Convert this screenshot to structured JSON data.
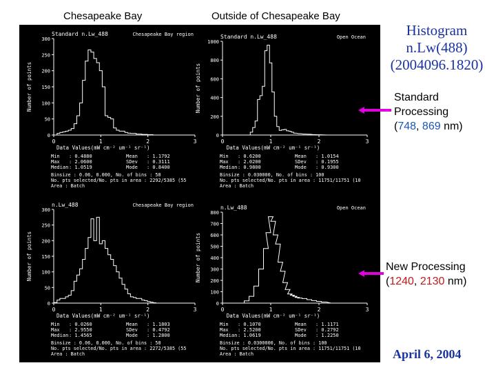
{
  "header": {
    "col_left": "Chesapeake Bay",
    "col_right": "Outside of Chesapeake Bay"
  },
  "side": {
    "title_lines": [
      "Histogram",
      "n.Lw(488)",
      "(2004096.1820)"
    ],
    "standard": {
      "line1": "Standard",
      "line2": "Processing",
      "open": "(",
      "v1": "748",
      "sep": ", ",
      "v2": "869",
      "unit": " nm)"
    },
    "new": {
      "line1": "New Processing",
      "open": "(",
      "v1": "1240",
      "sep": ", ",
      "v2": "2130",
      "unit": " nm)"
    },
    "date": "April 6, 2004"
  },
  "colors": {
    "arrow": "#e000e0",
    "title": "#1a33a0",
    "blue": "#1a56b4",
    "red": "#c01818"
  },
  "chart_data": [
    {
      "type": "bar",
      "title": "Standard n.Lw_488",
      "region": "Chesapeake Bay region",
      "xlabel": "Data Values(mW cm⁻² um⁻¹ sr⁻¹)",
      "ylabel": "Number of points",
      "xlim": [
        0,
        3
      ],
      "ylim": [
        0,
        300
      ],
      "xticks": [
        "0",
        "1",
        "2",
        "3"
      ],
      "yticks": [
        "0",
        "50",
        "100",
        "150",
        "200",
        "250",
        "300"
      ],
      "x": [
        0.04,
        0.1,
        0.16,
        0.22,
        0.28,
        0.34,
        0.4,
        0.46,
        0.52,
        0.58,
        0.64,
        0.7,
        0.76,
        0.82,
        0.88,
        0.94,
        1.0,
        1.06,
        1.12,
        1.18,
        1.24,
        1.3,
        1.36,
        1.42,
        1.48,
        1.54,
        1.6,
        1.66,
        1.72,
        1.78,
        1.84,
        1.9,
        1.96,
        2.02,
        2.08,
        2.14
      ],
      "values": [
        0,
        5,
        8,
        10,
        12,
        15,
        20,
        35,
        60,
        100,
        170,
        230,
        265,
        258,
        238,
        225,
        200,
        150,
        60,
        55,
        50,
        22,
        15,
        12,
        12,
        8,
        6,
        5,
        5,
        3,
        3,
        2,
        2,
        1,
        1,
        0
      ],
      "stats": [
        [
          "Min",
          ": 0.4880",
          "Mean",
          ": 1.1792"
        ],
        [
          "Max",
          ": 2.0600",
          "SDev",
          ": 0.3111"
        ],
        [
          "Median",
          ": 1.0519",
          "Mode",
          ": 0.8400"
        ]
      ],
      "footer": [
        "Binsize : 0.06, 0.000, No. of bins : 50",
        "No. pts selected/No. pts in area : 2292/5385 (55",
        "Area : Batch"
      ]
    },
    {
      "type": "bar",
      "title": "Standard n.Lw_488",
      "region": "Open Ocean",
      "xlabel": "Data Values(mW cm⁻² um⁻¹ sr⁻¹)",
      "ylabel": "Number of points",
      "xlim": [
        0,
        3
      ],
      "ylim": [
        0,
        1000
      ],
      "xticks": [
        "0",
        "1",
        "2",
        "3"
      ],
      "yticks": [
        "0",
        "200",
        "400",
        "600",
        "800",
        "1000"
      ],
      "x": [
        0.55,
        0.6,
        0.65,
        0.7,
        0.75,
        0.8,
        0.85,
        0.9,
        0.95,
        1.0,
        1.05,
        1.1,
        1.15,
        1.2,
        1.25,
        1.3,
        1.35,
        1.4,
        1.45,
        1.5,
        1.6,
        1.7,
        1.8,
        1.9,
        2.0,
        2.2
      ],
      "values": [
        0,
        30,
        80,
        150,
        380,
        420,
        520,
        900,
        960,
        770,
        460,
        200,
        90,
        50,
        55,
        60,
        45,
        40,
        30,
        20,
        15,
        10,
        8,
        5,
        3,
        0
      ],
      "stats": [
        [
          "Min",
          ": 0.6200",
          "Mean",
          ": 1.0154"
        ],
        [
          "Max",
          ": 2.0200",
          "SDev",
          ": 0.1955"
        ],
        [
          "Median",
          ": 0.9800",
          "Mode",
          ": 0.9300"
        ]
      ],
      "footer": [
        "Binsize : 0.030000, No. of bins : 100",
        "No. pts selected/No. pts in area : 11751/11751 (10",
        "Area : Batch"
      ]
    },
    {
      "type": "bar",
      "title": "n.Lw_488",
      "region": "Chesapeake Bay region",
      "xlabel": "Data Values(mW cm⁻² um⁻¹ sr⁻¹)",
      "ylabel": "Number of points",
      "xlim": [
        0,
        3
      ],
      "ylim": [
        0,
        300
      ],
      "xticks": [
        "0",
        "1",
        "2",
        "3"
      ],
      "yticks": [
        "0",
        "50",
        "100",
        "150",
        "200",
        "250",
        "300"
      ],
      "x": [
        0.04,
        0.1,
        0.16,
        0.22,
        0.28,
        0.34,
        0.4,
        0.46,
        0.52,
        0.58,
        0.64,
        0.7,
        0.76,
        0.82,
        0.88,
        0.94,
        1.0,
        1.06,
        1.12,
        1.18,
        1.24,
        1.3,
        1.36,
        1.42,
        1.48,
        1.54,
        1.6,
        1.66,
        1.72,
        1.78,
        1.84,
        1.9,
        1.96,
        2.02,
        2.08,
        2.14
      ],
      "values": [
        2,
        10,
        15,
        15,
        20,
        25,
        40,
        70,
        90,
        110,
        140,
        175,
        210,
        270,
        200,
        275,
        190,
        200,
        175,
        155,
        140,
        120,
        100,
        80,
        60,
        45,
        30,
        20,
        18,
        15,
        15,
        10,
        8,
        5,
        3,
        1
      ],
      "stats": [
        [
          "Min",
          ": 0.0260",
          "Mean",
          ": 1.1803"
        ],
        [
          "Max",
          ": 2.9550",
          "SDev",
          ": 0.4792"
        ],
        [
          "Median",
          ": 1.4565",
          "Mode",
          ": 1.2800"
        ]
      ],
      "footer": [
        "Binsize : 0.06, 0.000, No. of bins : 50",
        "No. pts selected/No. pts in area : 2272/5385 (55",
        "Area : Batch"
      ]
    },
    {
      "type": "bar",
      "title": "n.Lw_488",
      "region": "Open Ocean",
      "xlabel": "Data Values(mW cm⁻² um⁻¹ sr⁻¹)",
      "ylabel": "Number of points",
      "xlim": [
        0,
        3
      ],
      "ylim": [
        0,
        800
      ],
      "xticks": [
        "0",
        "1",
        "2",
        "3"
      ],
      "yticks": [
        "0",
        "100",
        "200",
        "300",
        "400",
        "500",
        "600",
        "700",
        "800"
      ],
      "x": [
        0.4,
        0.5,
        0.6,
        0.7,
        0.8,
        0.9,
        0.95,
        1.0,
        1.05,
        1.1,
        1.15,
        1.2,
        1.25,
        1.3,
        1.35,
        1.4,
        1.45,
        1.5,
        1.55,
        1.6,
        1.7,
        1.8,
        1.9,
        2.0,
        2.1,
        2.3
      ],
      "values": [
        0,
        20,
        60,
        150,
        300,
        480,
        620,
        760,
        720,
        600,
        520,
        360,
        280,
        180,
        120,
        80,
        70,
        60,
        50,
        45,
        40,
        30,
        22,
        15,
        10,
        0
      ],
      "stats": [
        [
          "Min",
          ": 0.1070",
          "Mean",
          ": 1.1171"
        ],
        [
          "Max",
          ": 2.5200",
          "SDev",
          ": 0.2792"
        ],
        [
          "Median",
          ": 1.0619",
          "Mode",
          ": 1.2250"
        ]
      ],
      "footer": [
        "Binsize : 0.0300000, No. of bins : 100",
        "No. pts selected/No. pts in area : 11751/11751 (10",
        "Area : Batch"
      ]
    }
  ]
}
